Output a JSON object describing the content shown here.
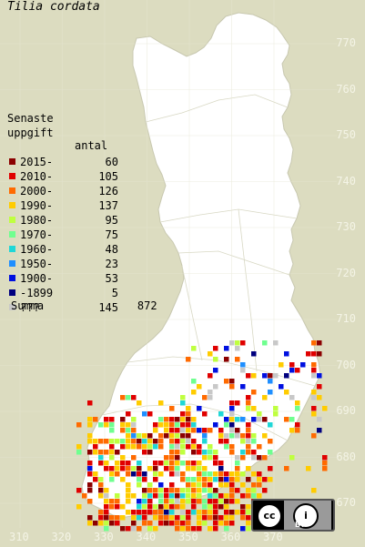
{
  "title": "Tilia cordata",
  "legend": {
    "heading_line1": "Senaste",
    "heading_line2": "uppgift",
    "count_header": "antal",
    "entries": [
      {
        "label": "2015-",
        "count": "60",
        "color": "#8b0000"
      },
      {
        "label": "2010-",
        "count": "105",
        "color": "#e00000"
      },
      {
        "label": "2000-",
        "count": "126",
        "color": "#ff6a00"
      },
      {
        "label": "1990-",
        "count": "137",
        "color": "#ffcc00"
      },
      {
        "label": "1980-",
        "count": "95",
        "color": "#bfff3f"
      },
      {
        "label": "1970-",
        "count": "75",
        "color": "#6fff8f"
      },
      {
        "label": "1960-",
        "count": "48",
        "color": "#1fd7d7"
      },
      {
        "label": "1950-",
        "count": "23",
        "color": "#1f8fff"
      },
      {
        "label": "1900-",
        "count": "53",
        "color": "#0010e0"
      },
      {
        "label": "-1899",
        "count": "5",
        "color": "#00007f"
      },
      {
        "label": "???",
        "count": "145",
        "color": "#c8c8c8"
      }
    ],
    "sum_label": "Summa",
    "sum_value": "872"
  },
  "y_ticks": [
    "770",
    "760",
    "750",
    "740",
    "730",
    "720",
    "710",
    "700",
    "690",
    "680",
    "670"
  ],
  "x_ticks": [
    "310",
    "320",
    "330",
    "340",
    "350",
    "360",
    "370"
  ],
  "license": {
    "left": "cc",
    "right": "i",
    "by": "BY"
  },
  "colors": {
    "background": "#dcdcc0",
    "land": "#ffffff",
    "grid": "#e6e6d2"
  }
}
